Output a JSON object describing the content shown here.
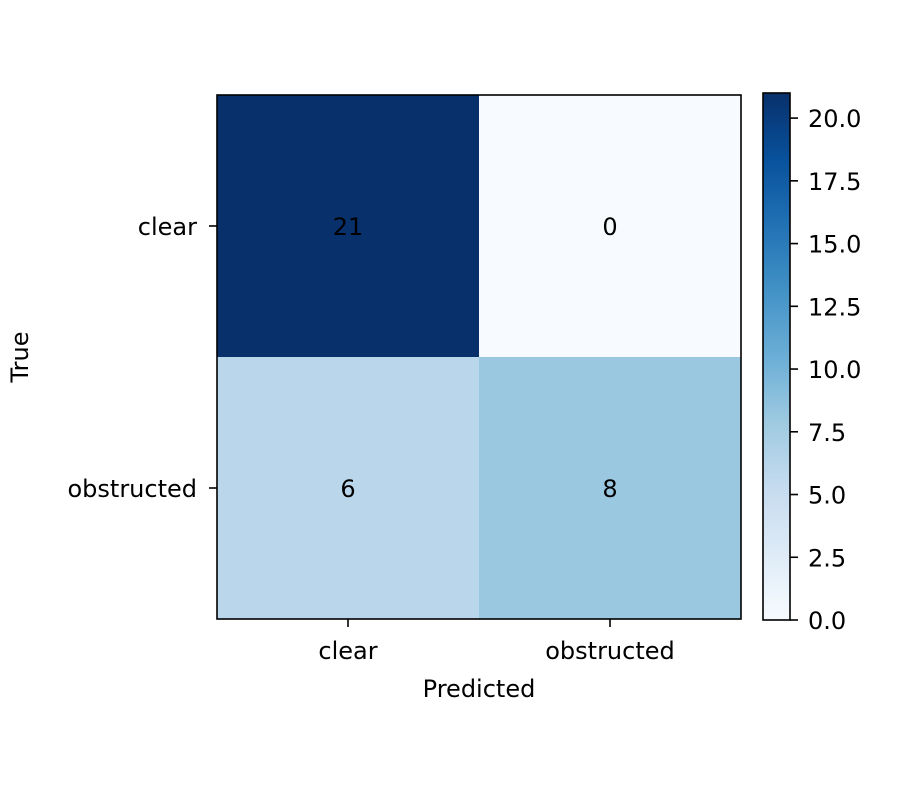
{
  "chart_data": {
    "type": "heatmap",
    "title": "",
    "xlabel": "Predicted",
    "ylabel": "True",
    "x_categories": [
      "clear",
      "obstructed"
    ],
    "y_categories": [
      "clear",
      "obstructed"
    ],
    "values": [
      [
        21,
        0
      ],
      [
        6,
        8
      ]
    ],
    "colormap": "Blues",
    "color_range": [
      0,
      21
    ],
    "colorbar": {
      "ticks": [
        0.0,
        2.5,
        5.0,
        7.5,
        10.0,
        12.5,
        15.0,
        17.5,
        20.0
      ],
      "tick_labels": [
        "0.0",
        "2.5",
        "5.0",
        "7.5",
        "10.0",
        "12.5",
        "15.0",
        "17.5",
        "20.0"
      ]
    },
    "cell_colors": [
      [
        "#08306b",
        "#f7fbff"
      ],
      [
        "#bad6eb",
        "#9ac8e0"
      ]
    ],
    "colormap_stops": [
      "#f7fbff",
      "#deebf7",
      "#c6dbef",
      "#9ecae1",
      "#6baed6",
      "#4292c6",
      "#2171b5",
      "#08519c",
      "#08306b"
    ],
    "grid": false
  }
}
